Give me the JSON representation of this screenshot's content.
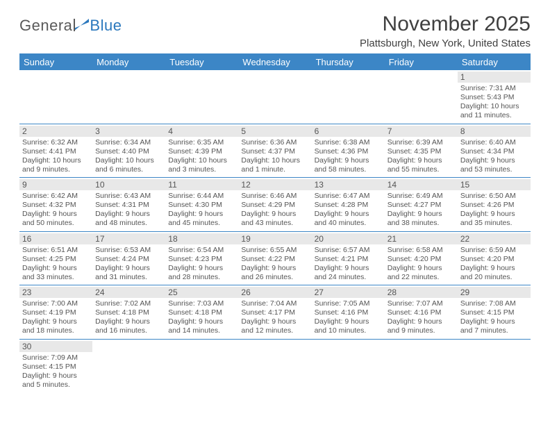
{
  "logo": {
    "gen": "Genera",
    "blue": "Blue"
  },
  "title": "November 2025",
  "location": "Plattsburgh, New York, United States",
  "colors": {
    "header_bg": "#3c86c6",
    "header_text": "#ffffff",
    "daynum_bg": "#e8e8e8",
    "text": "#555555",
    "rule": "#3c86c6"
  },
  "dayHeaders": [
    "Sunday",
    "Monday",
    "Tuesday",
    "Wednesday",
    "Thursday",
    "Friday",
    "Saturday"
  ],
  "weeks": [
    [
      null,
      null,
      null,
      null,
      null,
      null,
      {
        "n": "1",
        "sr": "7:31 AM",
        "ss": "5:43 PM",
        "dl": "10 hours and 11 minutes."
      }
    ],
    [
      {
        "n": "2",
        "sr": "6:32 AM",
        "ss": "4:41 PM",
        "dl": "10 hours and 9 minutes."
      },
      {
        "n": "3",
        "sr": "6:34 AM",
        "ss": "4:40 PM",
        "dl": "10 hours and 6 minutes."
      },
      {
        "n": "4",
        "sr": "6:35 AM",
        "ss": "4:39 PM",
        "dl": "10 hours and 3 minutes."
      },
      {
        "n": "5",
        "sr": "6:36 AM",
        "ss": "4:37 PM",
        "dl": "10 hours and 1 minute."
      },
      {
        "n": "6",
        "sr": "6:38 AM",
        "ss": "4:36 PM",
        "dl": "9 hours and 58 minutes."
      },
      {
        "n": "7",
        "sr": "6:39 AM",
        "ss": "4:35 PM",
        "dl": "9 hours and 55 minutes."
      },
      {
        "n": "8",
        "sr": "6:40 AM",
        "ss": "4:34 PM",
        "dl": "9 hours and 53 minutes."
      }
    ],
    [
      {
        "n": "9",
        "sr": "6:42 AM",
        "ss": "4:32 PM",
        "dl": "9 hours and 50 minutes."
      },
      {
        "n": "10",
        "sr": "6:43 AM",
        "ss": "4:31 PM",
        "dl": "9 hours and 48 minutes."
      },
      {
        "n": "11",
        "sr": "6:44 AM",
        "ss": "4:30 PM",
        "dl": "9 hours and 45 minutes."
      },
      {
        "n": "12",
        "sr": "6:46 AM",
        "ss": "4:29 PM",
        "dl": "9 hours and 43 minutes."
      },
      {
        "n": "13",
        "sr": "6:47 AM",
        "ss": "4:28 PM",
        "dl": "9 hours and 40 minutes."
      },
      {
        "n": "14",
        "sr": "6:49 AM",
        "ss": "4:27 PM",
        "dl": "9 hours and 38 minutes."
      },
      {
        "n": "15",
        "sr": "6:50 AM",
        "ss": "4:26 PM",
        "dl": "9 hours and 35 minutes."
      }
    ],
    [
      {
        "n": "16",
        "sr": "6:51 AM",
        "ss": "4:25 PM",
        "dl": "9 hours and 33 minutes."
      },
      {
        "n": "17",
        "sr": "6:53 AM",
        "ss": "4:24 PM",
        "dl": "9 hours and 31 minutes."
      },
      {
        "n": "18",
        "sr": "6:54 AM",
        "ss": "4:23 PM",
        "dl": "9 hours and 28 minutes."
      },
      {
        "n": "19",
        "sr": "6:55 AM",
        "ss": "4:22 PM",
        "dl": "9 hours and 26 minutes."
      },
      {
        "n": "20",
        "sr": "6:57 AM",
        "ss": "4:21 PM",
        "dl": "9 hours and 24 minutes."
      },
      {
        "n": "21",
        "sr": "6:58 AM",
        "ss": "4:20 PM",
        "dl": "9 hours and 22 minutes."
      },
      {
        "n": "22",
        "sr": "6:59 AM",
        "ss": "4:20 PM",
        "dl": "9 hours and 20 minutes."
      }
    ],
    [
      {
        "n": "23",
        "sr": "7:00 AM",
        "ss": "4:19 PM",
        "dl": "9 hours and 18 minutes."
      },
      {
        "n": "24",
        "sr": "7:02 AM",
        "ss": "4:18 PM",
        "dl": "9 hours and 16 minutes."
      },
      {
        "n": "25",
        "sr": "7:03 AM",
        "ss": "4:18 PM",
        "dl": "9 hours and 14 minutes."
      },
      {
        "n": "26",
        "sr": "7:04 AM",
        "ss": "4:17 PM",
        "dl": "9 hours and 12 minutes."
      },
      {
        "n": "27",
        "sr": "7:05 AM",
        "ss": "4:16 PM",
        "dl": "9 hours and 10 minutes."
      },
      {
        "n": "28",
        "sr": "7:07 AM",
        "ss": "4:16 PM",
        "dl": "9 hours and 9 minutes."
      },
      {
        "n": "29",
        "sr": "7:08 AM",
        "ss": "4:15 PM",
        "dl": "9 hours and 7 minutes."
      }
    ],
    [
      {
        "n": "30",
        "sr": "7:09 AM",
        "ss": "4:15 PM",
        "dl": "9 hours and 5 minutes."
      },
      null,
      null,
      null,
      null,
      null,
      null
    ]
  ],
  "labels": {
    "sunrise": "Sunrise: ",
    "sunset": "Sunset: ",
    "daylight": "Daylight: "
  }
}
